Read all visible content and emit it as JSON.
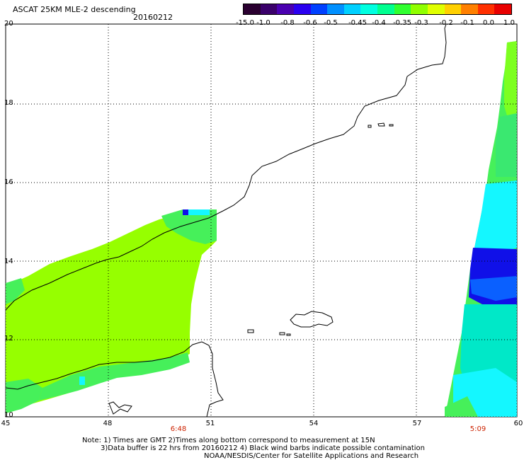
{
  "header": {
    "title": "ASCAT 25KM MLE-2 descending",
    "date": "20160212"
  },
  "colorbar": {
    "ticks": [
      "-15.0",
      "-1.0",
      "-0.8",
      "-0.6",
      "-0.5",
      "-0.45",
      "-0.4",
      "-0.35",
      "-0.3",
      "-0.2",
      "-0.1",
      "0.0",
      "1.0"
    ],
    "colors": [
      "#2a0030",
      "#3a006a",
      "#4a00b0",
      "#2a00f0",
      "#0040ff",
      "#0090ff",
      "#00d0ff",
      "#00ffe0",
      "#00ff90",
      "#30ff30",
      "#90ff00",
      "#e0ff00",
      "#ffd000",
      "#ff8000",
      "#ff3000",
      "#e80000"
    ]
  },
  "map": {
    "lon_labels": [
      "45",
      "48",
      "51",
      "54",
      "57",
      "60"
    ],
    "lat_labels": [
      "20",
      "18",
      "16",
      "14",
      "12",
      "10"
    ],
    "time_labels": [
      {
        "text": "6:48",
        "lon": 50.0
      },
      {
        "text": "5:09",
        "lon": 58.6
      }
    ]
  },
  "notes": {
    "line1": "Note: 1) Times are GMT 2)Times along bottom correspond to measurement at 15N",
    "line2": "3)Data buffer is 22 hrs from 20160212 4) Black wind barbs indicate possible contamination",
    "line3": "NOAA/NESDIS/Center for Satellite Applications and Research"
  }
}
